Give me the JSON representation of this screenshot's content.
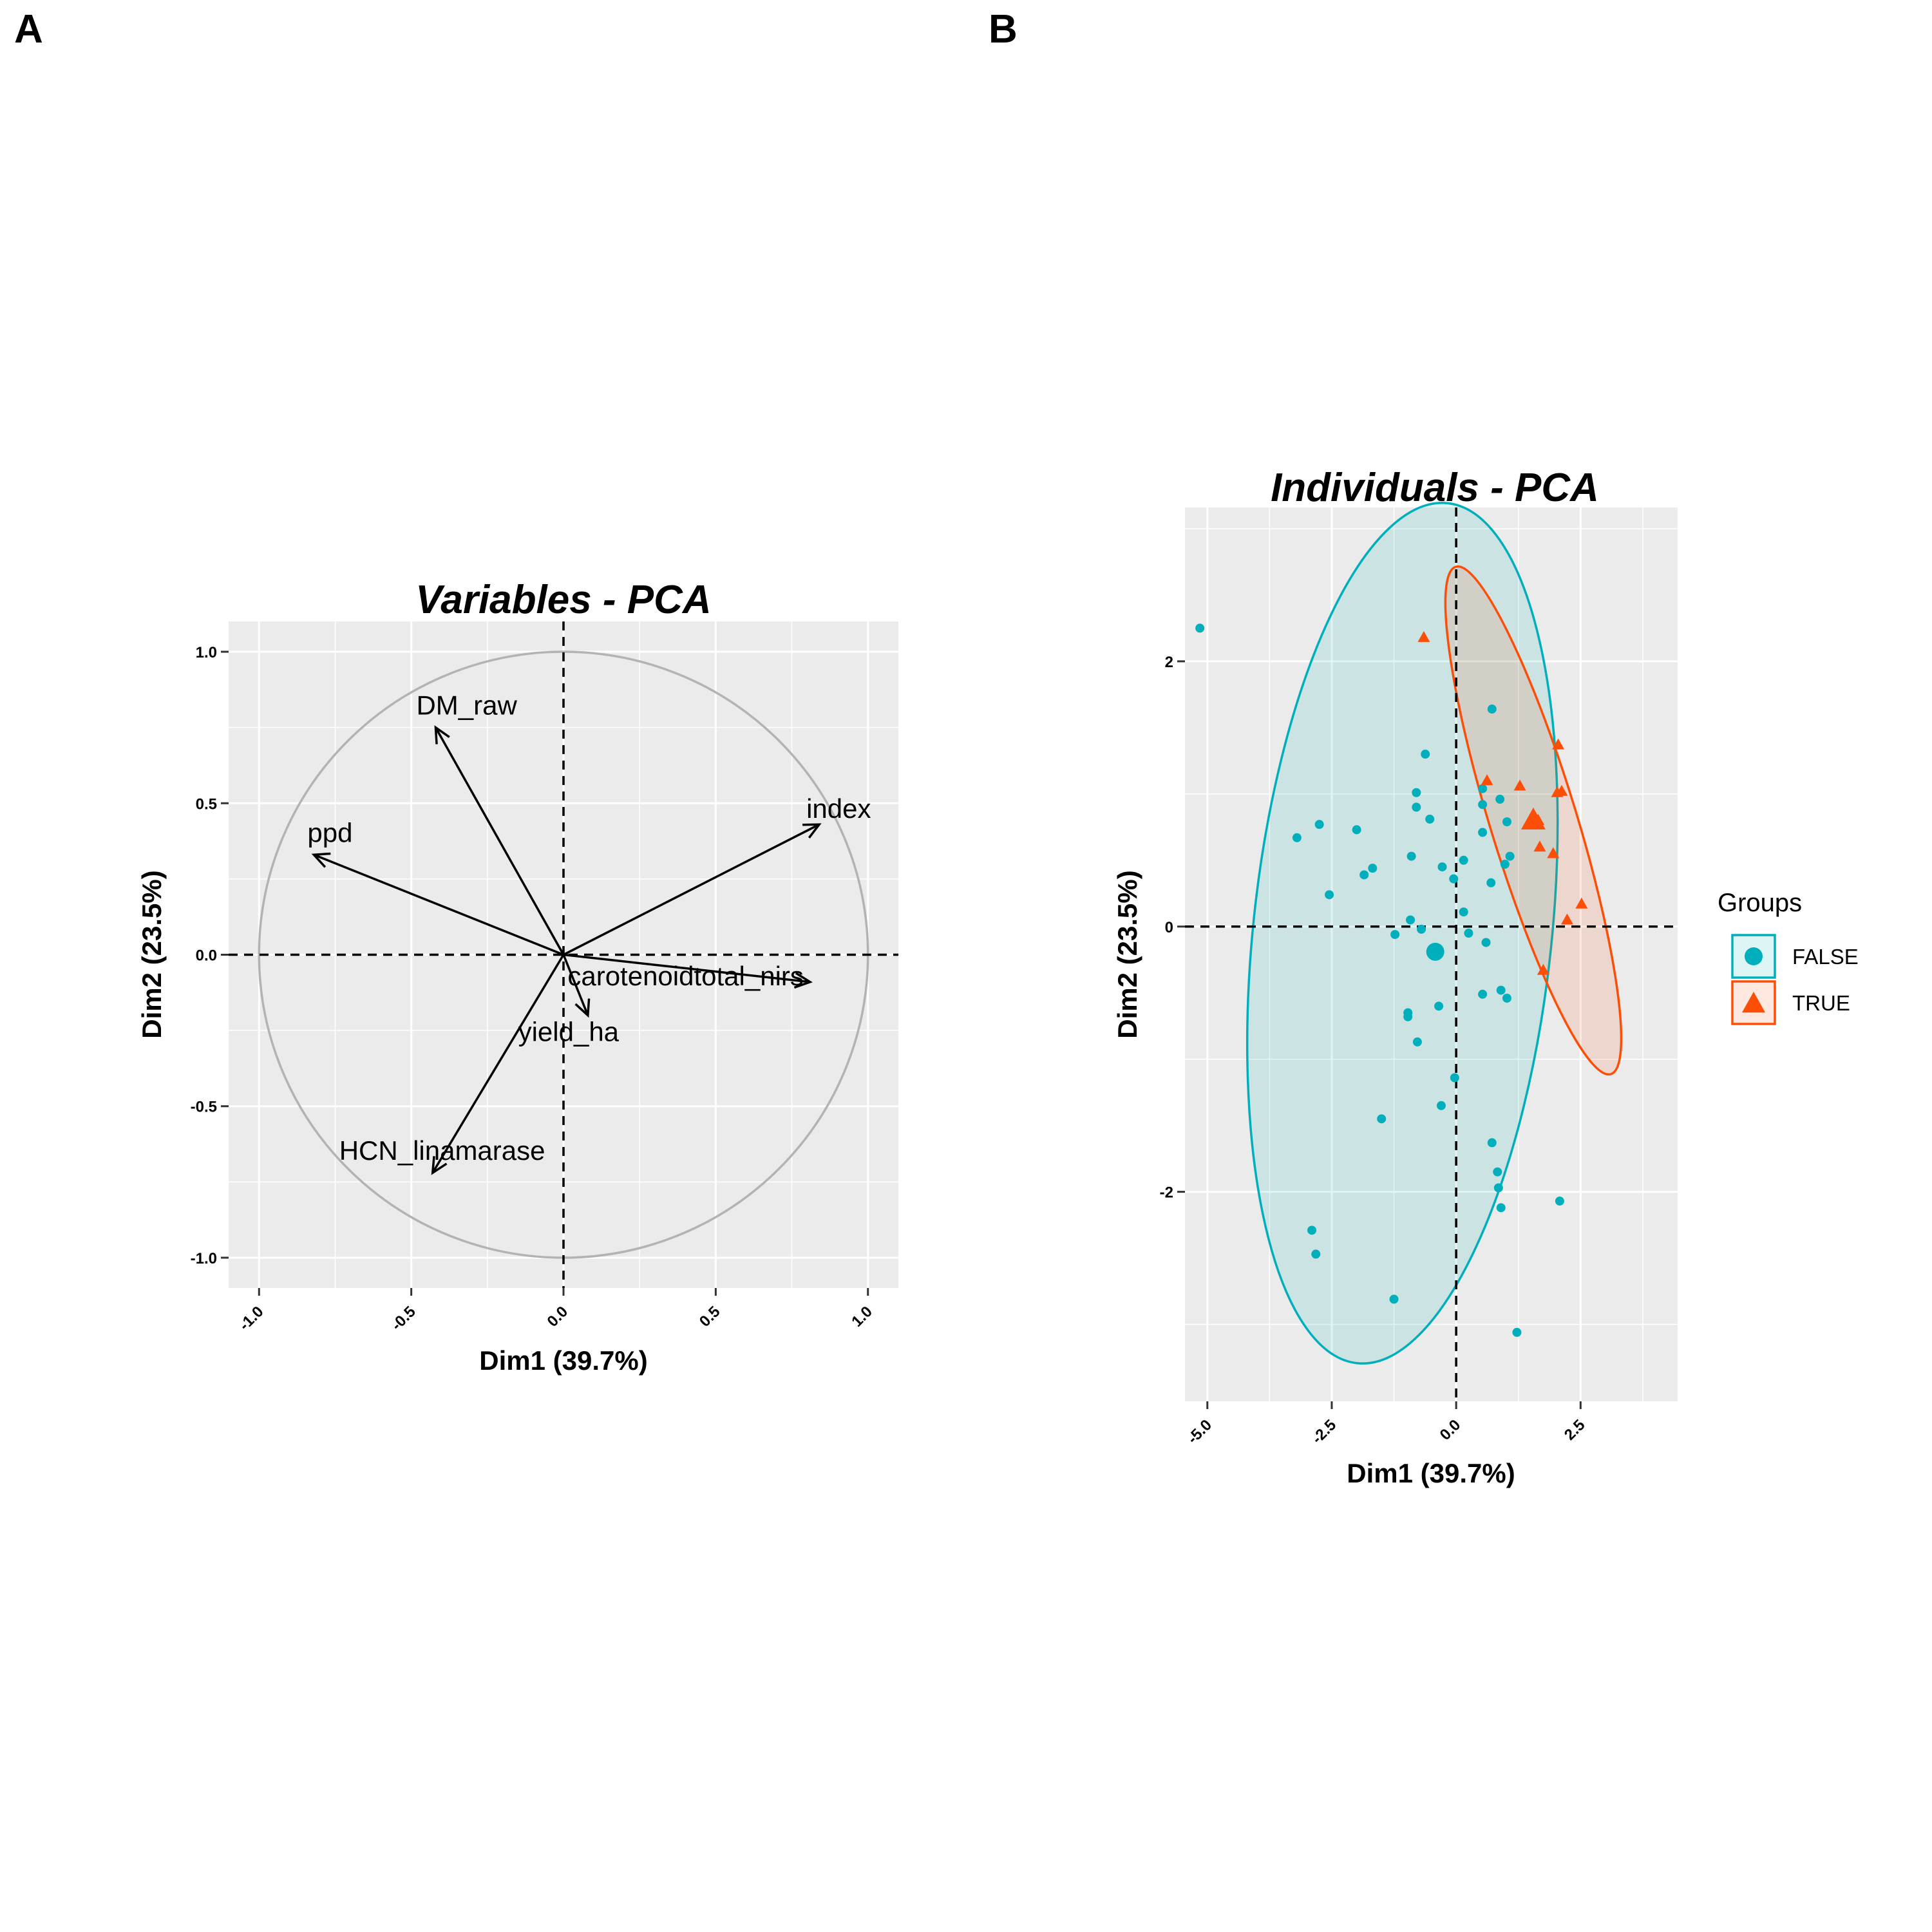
{
  "panels": {
    "a": {
      "letter": "A"
    },
    "b": {
      "letter": "B"
    }
  },
  "chart_data": [
    {
      "type": "scatter",
      "title": "Variables - PCA",
      "xlabel": "Dim1 (39.7%)",
      "ylabel": "Dim2 (23.5%)",
      "xlim": [
        -1.1,
        1.1
      ],
      "ylim": [
        -1.1,
        1.1
      ],
      "x_ticks": [
        -1.0,
        -0.5,
        0.0,
        0.5,
        1.0
      ],
      "x_tick_labels": [
        "-1.0",
        "-0.5",
        "0.0",
        "0.5",
        "1.0"
      ],
      "y_ticks": [
        -1.0,
        -0.5,
        0.0,
        0.5,
        1.0
      ],
      "y_tick_labels": [
        "-1.0",
        "-0.5",
        "0.0",
        "0.5",
        "1.0"
      ],
      "grid": true,
      "correlation_circle": true,
      "variables": [
        {
          "name": "DM_raw",
          "x": -0.42,
          "y": 0.75
        },
        {
          "name": "index",
          "x": 0.84,
          "y": 0.43
        },
        {
          "name": "ppd",
          "x": -0.82,
          "y": 0.33
        },
        {
          "name": "carotenoidtotal_nirs",
          "x": 0.81,
          "y": -0.09
        },
        {
          "name": "yield_ha",
          "x": 0.08,
          "y": -0.2
        },
        {
          "name": "HCN_linamarase",
          "x": -0.43,
          "y": -0.72
        }
      ]
    },
    {
      "type": "scatter",
      "title": "Individuals - PCA",
      "xlabel": "Dim1 (39.7%)",
      "ylabel": "Dim2 (23.5%)",
      "xlim": [
        -5.45,
        4.45
      ],
      "ylim": [
        -3.58,
        3.16
      ],
      "x_ticks": [
        -5.0,
        -2.5,
        0.0,
        2.5
      ],
      "x_tick_labels": [
        "-5.0",
        "-2.5",
        "0.0",
        "2.5"
      ],
      "y_ticks": [
        -2,
        0,
        2
      ],
      "y_tick_labels": [
        "-2",
        "0",
        "2"
      ],
      "grid": true,
      "legend": {
        "title": "Groups",
        "position": "right"
      },
      "series": [
        {
          "name": "FALSE",
          "color": "#00AFBB",
          "marker": "circle",
          "mean": {
            "x": -0.42,
            "y": -0.19
          },
          "ellipse": {
            "cx": -1.08,
            "cy": -0.05,
            "rx": 3.0,
            "ry": 3.26,
            "angle_deg": 6
          },
          "points": [
            [
              -5.15,
              2.25
            ],
            [
              0.72,
              1.64
            ],
            [
              -0.62,
              1.3
            ],
            [
              -0.8,
              1.01
            ],
            [
              0.53,
              1.04
            ],
            [
              0.88,
              0.96
            ],
            [
              -0.8,
              0.9
            ],
            [
              0.53,
              0.92
            ],
            [
              -0.53,
              0.81
            ],
            [
              1.02,
              0.79
            ],
            [
              -2.75,
              0.77
            ],
            [
              -2.0,
              0.73
            ],
            [
              0.53,
              0.71
            ],
            [
              -3.2,
              0.67
            ],
            [
              -0.9,
              0.53
            ],
            [
              1.08,
              0.53
            ],
            [
              0.15,
              0.5
            ],
            [
              0.98,
              0.47
            ],
            [
              -0.28,
              0.45
            ],
            [
              -1.68,
              0.44
            ],
            [
              -1.85,
              0.39
            ],
            [
              -0.05,
              0.36
            ],
            [
              0.7,
              0.33
            ],
            [
              -2.55,
              0.24
            ],
            [
              0.15,
              0.11
            ],
            [
              -0.92,
              0.05
            ],
            [
              -0.7,
              -0.02
            ],
            [
              -1.23,
              -0.06
            ],
            [
              0.25,
              -0.05
            ],
            [
              0.6,
              -0.12
            ],
            [
              0.9,
              -0.48
            ],
            [
              0.53,
              -0.51
            ],
            [
              1.02,
              -0.54
            ],
            [
              -0.35,
              -0.6
            ],
            [
              -0.97,
              -0.65
            ],
            [
              -0.97,
              -0.68
            ],
            [
              -0.78,
              -0.87
            ],
            [
              -0.03,
              -1.14
            ],
            [
              -0.3,
              -1.35
            ],
            [
              -1.5,
              -1.45
            ],
            [
              0.72,
              -1.63
            ],
            [
              0.83,
              -1.85
            ],
            [
              0.85,
              -1.97
            ],
            [
              0.9,
              -2.12
            ],
            [
              2.08,
              -2.07
            ],
            [
              -2.9,
              -2.29
            ],
            [
              -2.82,
              -2.47
            ],
            [
              -1.25,
              -2.81
            ],
            [
              1.22,
              -3.06
            ]
          ]
        },
        {
          "name": "TRUE",
          "color": "#FC4E07",
          "marker": "triangle",
          "mean": {
            "x": 1.55,
            "y": 0.8
          },
          "ellipse": {
            "cx": 1.55,
            "cy": 0.8,
            "rx": 0.87,
            "ry": 2.0,
            "angle_deg": -17
          },
          "points": [
            [
              -0.65,
              2.18
            ],
            [
              2.05,
              1.37
            ],
            [
              0.62,
              1.1
            ],
            [
              1.28,
              1.06
            ],
            [
              2.03,
              1.01
            ],
            [
              2.12,
              1.02
            ],
            [
              1.65,
              0.8
            ],
            [
              1.68,
              0.6
            ],
            [
              1.95,
              0.55
            ],
            [
              2.52,
              0.17
            ],
            [
              2.23,
              0.05
            ],
            [
              1.75,
              -0.33
            ]
          ]
        }
      ]
    }
  ]
}
